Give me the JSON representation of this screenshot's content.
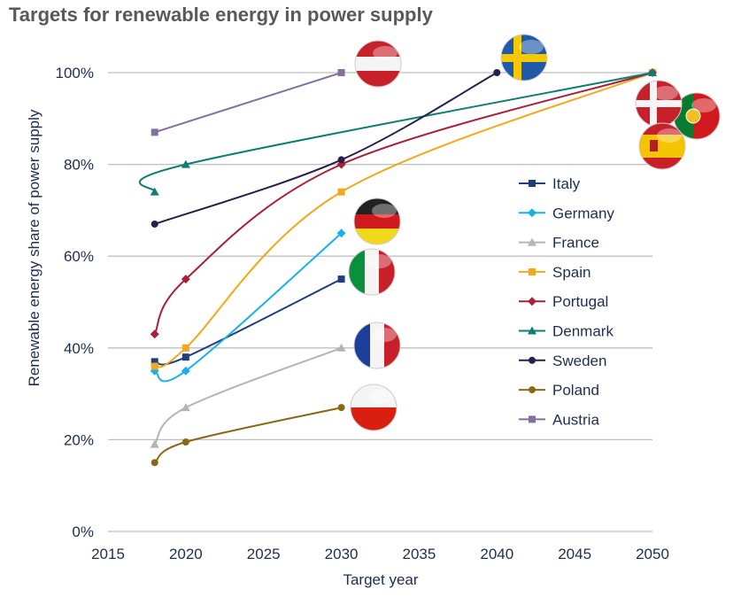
{
  "chart_data": {
    "type": "line",
    "title": "Targets for renewable energy in power supply",
    "xlabel": "Target year",
    "ylabel": "Renewable energy share of power supply",
    "xlim": [
      2015,
      2050
    ],
    "ylim": [
      0,
      100
    ],
    "xticks": [
      "2015",
      "2020",
      "2025",
      "2030",
      "2035",
      "2040",
      "2045",
      "2050"
    ],
    "yticks": [
      "0%",
      "20%",
      "40%",
      "60%",
      "80%",
      "100%"
    ],
    "grid": "horizontal",
    "legend_position": "right",
    "smoothed": true,
    "series": [
      {
        "name": "Italy",
        "color": "#1f3e7c",
        "marker": "square",
        "flag": "italy",
        "x": [
          2018,
          2020,
          2030
        ],
        "y": [
          37,
          38,
          55
        ]
      },
      {
        "name": "Germany",
        "color": "#1ab0e8",
        "marker": "diamond",
        "flag": "germany",
        "x": [
          2018,
          2020,
          2030
        ],
        "y": [
          35,
          35,
          65
        ]
      },
      {
        "name": "France",
        "color": "#b4b4b4",
        "marker": "triangle",
        "flag": "france",
        "x": [
          2018,
          2020,
          2030
        ],
        "y": [
          19,
          27,
          40
        ]
      },
      {
        "name": "Spain",
        "color": "#f0a81c",
        "marker": "square",
        "flag": "spain",
        "x": [
          2018,
          2020,
          2030,
          2050
        ],
        "y": [
          36,
          40,
          74,
          100
        ]
      },
      {
        "name": "Portugal",
        "color": "#a8213a",
        "marker": "diamond",
        "flag": "portugal",
        "x": [
          2018,
          2020,
          2030,
          2050
        ],
        "y": [
          43,
          55,
          80,
          100
        ]
      },
      {
        "name": "Denmark",
        "color": "#0f7d70",
        "marker": "triangle",
        "flag": "denmark",
        "x": [
          2018,
          2020,
          2050
        ],
        "y": [
          74,
          80,
          100
        ]
      },
      {
        "name": "Sweden",
        "color": "#2a1e4a",
        "marker": "circle",
        "flag": "sweden",
        "x": [
          2018,
          2030,
          2040
        ],
        "y": [
          67,
          81,
          100
        ]
      },
      {
        "name": "Poland",
        "color": "#8b6914",
        "marker": "circle",
        "flag": "poland",
        "x": [
          2018,
          2020,
          2030
        ],
        "y": [
          15,
          19.5,
          27
        ]
      },
      {
        "name": "Austria",
        "color": "#8470a0",
        "marker": "square",
        "flag": "austria",
        "x": [
          2018,
          2030
        ],
        "y": [
          87,
          100
        ]
      }
    ]
  }
}
